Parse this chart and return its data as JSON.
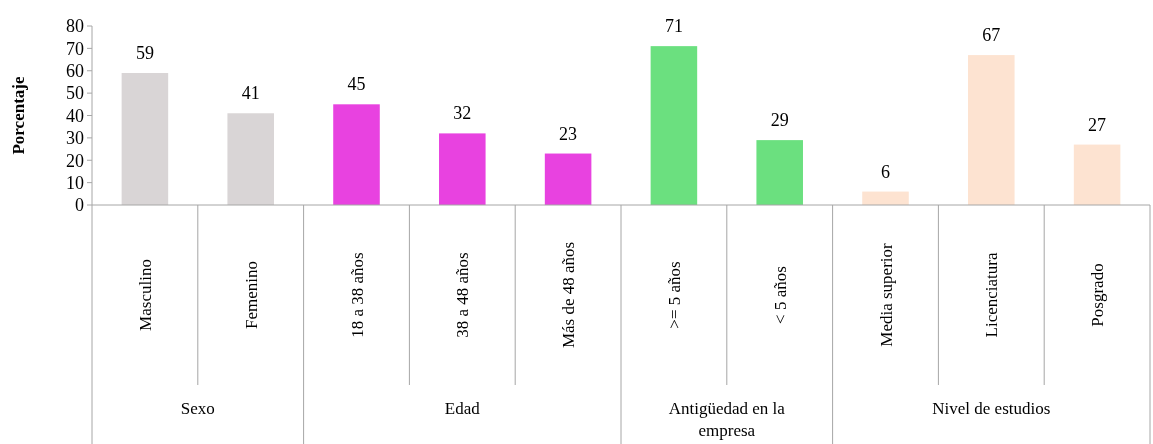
{
  "chart_data": {
    "type": "bar",
    "ylabel": "Porcentaje",
    "categories": [
      "Masculino",
      "Femenino",
      "18 a 38 años",
      "38 a 48 años",
      "Más de 48 años",
      ">= 5 años",
      "< 5 años",
      "Media superior",
      "Licenciatura",
      "Posgrado"
    ],
    "series": [
      {
        "color": "#d9d5d6",
        "values": [
          59,
          41,
          null,
          null,
          null,
          null,
          null,
          null,
          null,
          null
        ]
      },
      {
        "color": "#e842e0",
        "values": [
          null,
          null,
          45,
          32,
          23,
          null,
          null,
          null,
          null,
          null
        ]
      },
      {
        "color": "#6be07f",
        "values": [
          null,
          null,
          null,
          null,
          null,
          71,
          29,
          null,
          null,
          null
        ]
      },
      {
        "color": "#fde3d1",
        "values": [
          null,
          null,
          null,
          null,
          null,
          null,
          null,
          6,
          67,
          27
        ]
      }
    ],
    "annotations": [
      "Sexo",
      "Edad",
      "Antigüedad en la empresa",
      "Nivel de estudios"
    ],
    "ylim": [
      0,
      80
    ],
    "yticks": [
      0,
      10,
      20,
      30,
      40,
      50,
      60,
      70,
      80
    ],
    "data_labels": true,
    "grid": false
  }
}
